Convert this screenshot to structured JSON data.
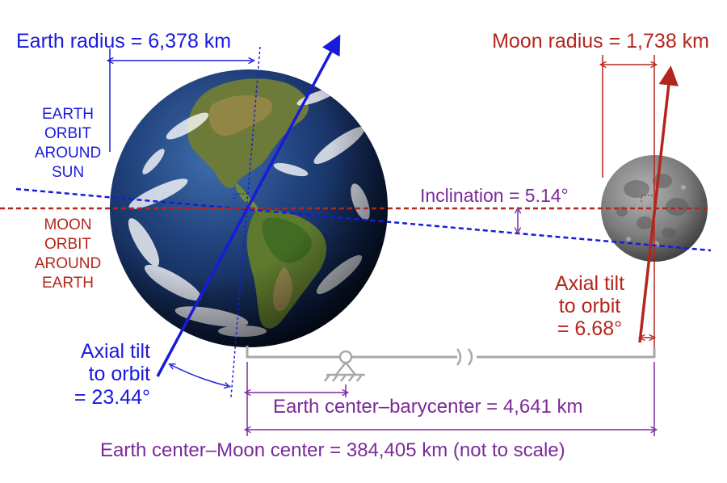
{
  "labels": {
    "earth_radius": "Earth radius = 6,378 km",
    "moon_radius": "Moon radius = 1,738 km",
    "earth_orbit": [
      "EARTH",
      "ORBIT",
      "AROUND",
      "SUN"
    ],
    "moon_orbit": [
      "MOON",
      "ORBIT",
      "AROUND",
      "EARTH"
    ],
    "inclination": "Inclination = 5.14°",
    "earth_tilt": [
      "Axial tilt",
      "to orbit",
      "= 23.44°"
    ],
    "moon_tilt": [
      "Axial tilt",
      "to orbit",
      "= 6.68°"
    ],
    "barycenter": "Earth center–barycenter = 4,641 km",
    "earth_moon_distance": "Earth center–Moon center = 384,405 km (not to scale)"
  },
  "colors": {
    "earth": "#1a1adc",
    "moon": "#b3261e",
    "distance": "#7b2a9a",
    "beam": "#a8a8a8"
  }
}
